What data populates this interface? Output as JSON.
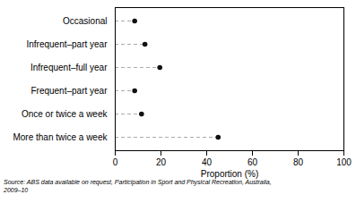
{
  "chart_data": {
    "type": "lollipop",
    "categories": [
      "Occasional",
      "Infrequent–part year",
      "Infrequent–full year",
      "Frequent–part year",
      "Once or twice a week",
      "More than twice a week"
    ],
    "values": [
      8.5,
      13.0,
      19.5,
      8.5,
      11.5,
      45.0
    ],
    "xlim": [
      0,
      100
    ],
    "xticks": [
      0,
      20,
      40,
      60,
      80,
      100
    ],
    "xlabel": "Proportion (%)",
    "color": "#111111",
    "line_style": "dashed",
    "marker": "circle",
    "caption": "Source: ABS data available on request, Participation in Sport and Physical Recreation, Australia,\n2009–10"
  }
}
